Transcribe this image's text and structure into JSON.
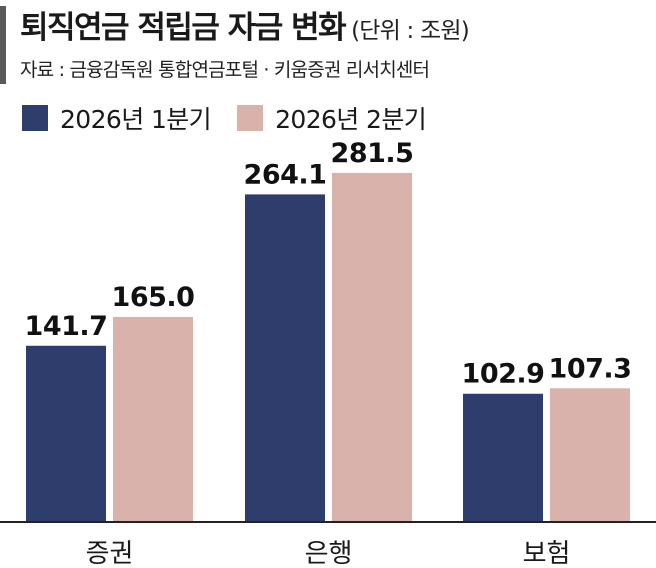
{
  "header": {
    "title": "퇴직연금 적립금 자금 변화",
    "unit": "(단위 : 조원)",
    "source": "자료 : 금융감독원 통합연금포털 · 키움증권 리서치센터"
  },
  "colors": {
    "series1": "#2e3d6b",
    "series2": "#d9b3ab",
    "axis": "#222222",
    "title_bar": "#5a5a5a"
  },
  "chart_data": {
    "type": "bar",
    "title": "퇴직연금 적립금 자금 변화",
    "unit": "(단위 : 조원)",
    "categories": [
      "증권",
      "은행",
      "보험"
    ],
    "series": [
      {
        "name": "2026년 1분기",
        "values": [
          141.7,
          264.1,
          102.9
        ]
      },
      {
        "name": "2026년 2분기",
        "values": [
          165.0,
          281.5,
          107.3
        ]
      }
    ],
    "value_labels": [
      [
        "141.7",
        "264.1",
        "102.9"
      ],
      [
        "165.0",
        "281.5",
        "107.3"
      ]
    ],
    "ylim": [
      0,
      300
    ],
    "grid": false,
    "legend": "top-left",
    "xlabel": "",
    "ylabel": ""
  }
}
